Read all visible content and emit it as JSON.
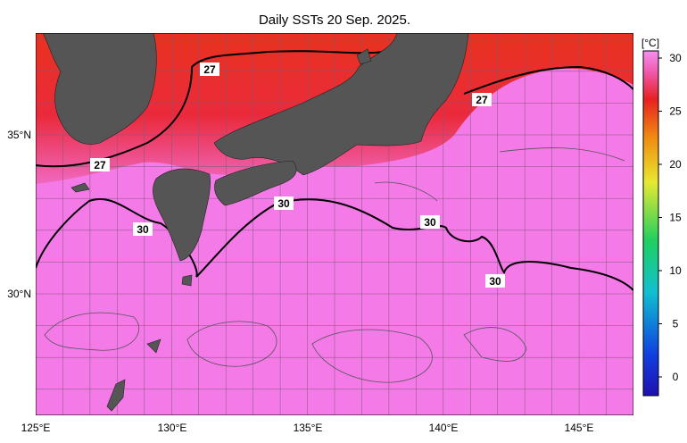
{
  "title": "Daily SSTs 20 Sep. 2025.",
  "lon_labels": [
    "125°E",
    "130°E",
    "135°E",
    "140°E",
    "145°E"
  ],
  "lat_labels": [
    "35°N",
    "30°N"
  ],
  "colorbar": {
    "unit": "[°C]",
    "ticks": [
      0,
      5,
      10,
      15,
      20,
      25,
      30
    ]
  },
  "contour_labels": [
    "27",
    "27",
    "27",
    "30",
    "30",
    "30",
    "30"
  ]
}
